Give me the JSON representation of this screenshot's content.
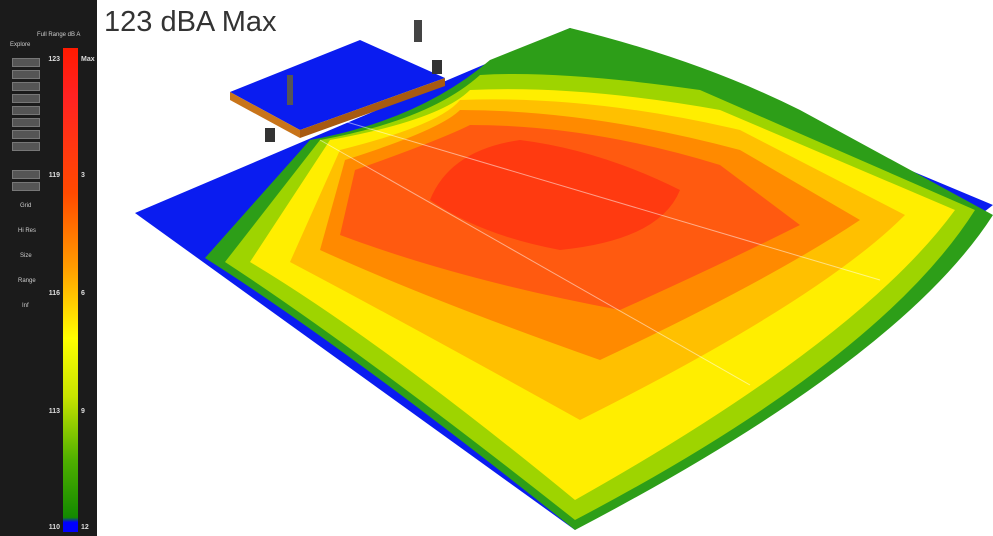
{
  "header": {
    "title": "123 dBA Max"
  },
  "panel": {
    "mode": "Full Range dB A",
    "section": "Explore",
    "scale": [
      {
        "level": 123,
        "offset": "Max"
      },
      {
        "level": 119,
        "offset": 3
      },
      {
        "level": 116,
        "offset": 6
      },
      {
        "level": 113,
        "offset": 9
      },
      {
        "level": 110,
        "offset": 12
      }
    ],
    "controls": [
      "Grid",
      "Hi Res",
      "Size",
      "Range",
      "Inf"
    ]
  }
}
